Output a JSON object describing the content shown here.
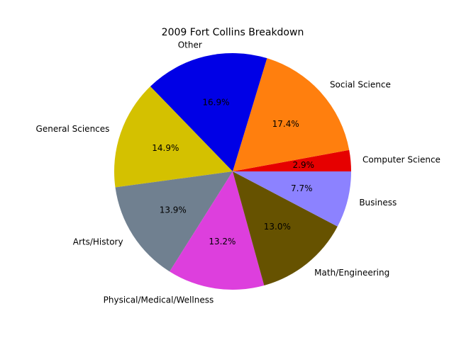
{
  "chart_data": {
    "type": "pie",
    "title": "2009 Fort Collins Breakdown",
    "slices": [
      {
        "label": "Computer Science",
        "value": 2.9,
        "pct_label": "2.9%",
        "color": "#e60000"
      },
      {
        "label": "Social Science",
        "value": 17.4,
        "pct_label": "17.4%",
        "color": "#ff7f0e"
      },
      {
        "label": "Other",
        "value": 16.9,
        "pct_label": "16.9%",
        "color": "#0000e6"
      },
      {
        "label": "General Sciences",
        "value": 14.9,
        "pct_label": "14.9%",
        "color": "#d4c100"
      },
      {
        "label": "Arts/History",
        "value": 13.9,
        "pct_label": "13.9%",
        "color": "#708090"
      },
      {
        "label": "Physical/Medical/Wellness",
        "value": 13.2,
        "pct_label": "13.2%",
        "color": "#dd3fdd"
      },
      {
        "label": "Math/Engineering",
        "value": 13.0,
        "pct_label": "13.0%",
        "color": "#665200"
      },
      {
        "label": "Business",
        "value": 7.7,
        "pct_label": "7.7%",
        "color": "#8c82ff"
      }
    ],
    "start_angle_deg": 0,
    "direction": "counterclockwise",
    "legend": "none"
  }
}
